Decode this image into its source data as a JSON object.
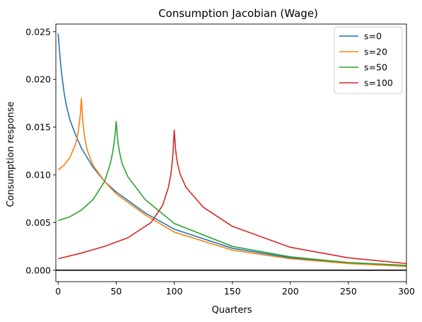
{
  "chart_data": {
    "type": "line",
    "title": "Consumption Jacobian (Wage)",
    "xlabel": "Quarters",
    "ylabel": "Consumption response",
    "xlim": [
      -2,
      300
    ],
    "ylim": [
      -0.0012,
      0.0258
    ],
    "xticks": [
      0,
      50,
      100,
      150,
      200,
      250,
      300
    ],
    "yticks": [
      0.0,
      0.005,
      0.01,
      0.015,
      0.02,
      0.025
    ],
    "ytick_labels": [
      "0.000",
      "0.005",
      "0.010",
      "0.015",
      "0.020",
      "0.025"
    ],
    "grid": false,
    "legend_position": "top-right",
    "reference_line": {
      "y": 0.0,
      "color": "#000000"
    },
    "series": [
      {
        "name": "s=0",
        "color": "#1f77b4",
        "x": [
          0,
          1,
          2,
          3,
          5,
          7,
          10,
          15,
          20,
          30,
          40,
          50,
          75,
          100,
          150,
          200,
          250,
          300
        ],
        "y": [
          0.0248,
          0.0232,
          0.0218,
          0.0206,
          0.0187,
          0.0173,
          0.0158,
          0.0142,
          0.0128,
          0.0108,
          0.0093,
          0.0082,
          0.006,
          0.0043,
          0.0023,
          0.0013,
          0.0008,
          0.0005
        ]
      },
      {
        "name": "s=20",
        "color": "#ff7f0e",
        "x": [
          0,
          5,
          10,
          15,
          17,
          18,
          19,
          20,
          21,
          22,
          23,
          25,
          30,
          40,
          50,
          75,
          100,
          150,
          200,
          250,
          300
        ],
        "y": [
          0.0105,
          0.011,
          0.0118,
          0.0132,
          0.0143,
          0.0152,
          0.0162,
          0.018,
          0.016,
          0.0147,
          0.0138,
          0.0126,
          0.011,
          0.0093,
          0.008,
          0.0058,
          0.004,
          0.0021,
          0.0012,
          0.0007,
          0.0004
        ]
      },
      {
        "name": "s=50",
        "color": "#2ca02c",
        "x": [
          0,
          10,
          20,
          30,
          40,
          45,
          47,
          48,
          49,
          50,
          51,
          52,
          53,
          55,
          60,
          75,
          100,
          150,
          200,
          250,
          300
        ],
        "y": [
          0.0052,
          0.0056,
          0.0063,
          0.0074,
          0.0093,
          0.0112,
          0.0124,
          0.0132,
          0.0142,
          0.0156,
          0.014,
          0.013,
          0.0123,
          0.0112,
          0.0098,
          0.0074,
          0.0049,
          0.0025,
          0.0014,
          0.0008,
          0.0005
        ]
      },
      {
        "name": "s=100",
        "color": "#d62728",
        "x": [
          0,
          20,
          40,
          60,
          80,
          90,
          95,
          97,
          98,
          99,
          100,
          101,
          102,
          103,
          105,
          110,
          125,
          150,
          200,
          250,
          300
        ],
        "y": [
          0.0012,
          0.0018,
          0.0025,
          0.0034,
          0.005,
          0.0068,
          0.0087,
          0.01,
          0.011,
          0.0124,
          0.0147,
          0.0128,
          0.0118,
          0.0111,
          0.0101,
          0.0087,
          0.0066,
          0.0046,
          0.0024,
          0.0013,
          0.0007
        ]
      }
    ]
  }
}
